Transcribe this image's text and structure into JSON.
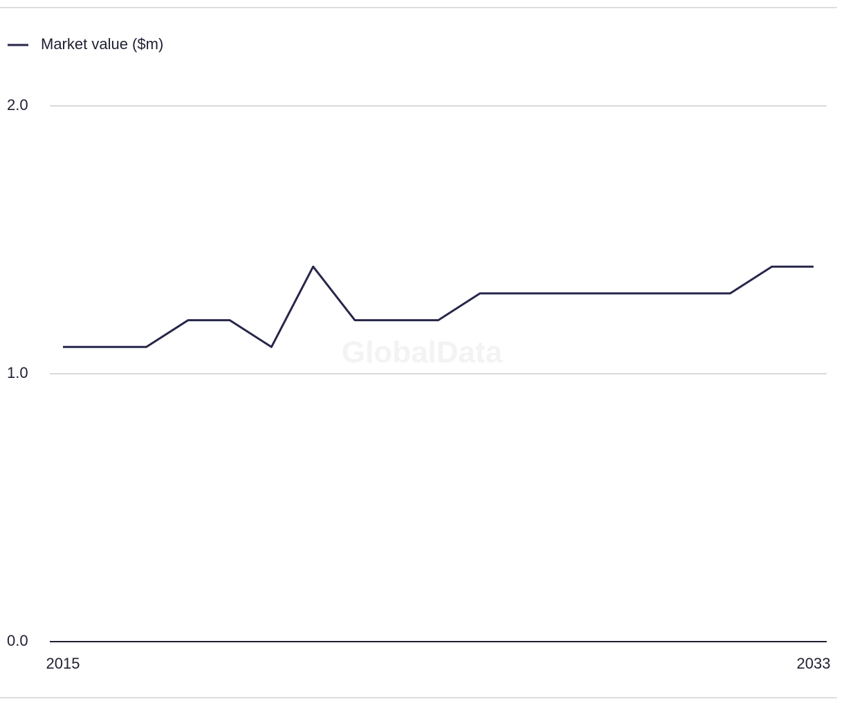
{
  "chart_data": {
    "type": "line",
    "x": [
      2015,
      2016,
      2017,
      2018,
      2019,
      2020,
      2021,
      2022,
      2023,
      2024,
      2025,
      2026,
      2027,
      2028,
      2029,
      2030,
      2031,
      2032,
      2033
    ],
    "series": [
      {
        "name": "Market value ($m)",
        "color": "#26264a",
        "values": [
          1.1,
          1.1,
          1.1,
          1.2,
          1.2,
          1.1,
          1.4,
          1.2,
          1.2,
          1.2,
          1.3,
          1.3,
          1.3,
          1.3,
          1.3,
          1.3,
          1.3,
          1.4,
          1.4
        ]
      }
    ],
    "xlim": [
      2015,
      2033
    ],
    "xticks": [
      2015,
      2033
    ],
    "ylim": [
      0,
      2
    ],
    "yticks": [
      {
        "value": 0,
        "label": "0.0"
      },
      {
        "value": 1,
        "label": "1.0"
      },
      {
        "value": 2,
        "label": "2.0"
      }
    ],
    "grid": true,
    "legend": "top-left",
    "watermark": "GlobalData"
  }
}
